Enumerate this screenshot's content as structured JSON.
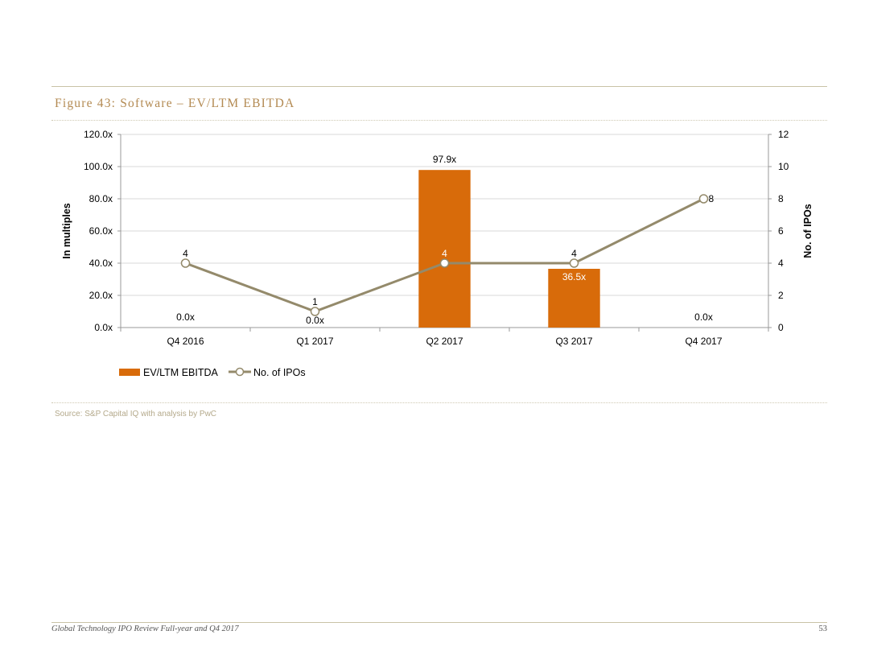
{
  "figure_title": "Figure 43: Software – EV/LTM EBITDA",
  "source": "Source: S&P Capital IQ with analysis by PwC",
  "footer": {
    "left": "Global Technology IPO Review Full-year and Q4 2017",
    "page": "53"
  },
  "colors": {
    "bar": "#d86b0a",
    "line": "#948a6b",
    "grid": "#d9d9d9",
    "axis": "#999999",
    "title": "#b38a52"
  },
  "chart_data": {
    "type": "bar",
    "title": "",
    "categories": [
      "Q4 2016",
      "Q1 2017",
      "Q2 2017",
      "Q3 2017",
      "Q4 2017"
    ],
    "series": [
      {
        "name": "EV/LTM EBITDA",
        "type": "bar",
        "axis": "left",
        "values": [
          0.0,
          0.0,
          97.9,
          36.5,
          0.0
        ],
        "data_labels": [
          "0.0x",
          "0.0x",
          "97.9x",
          "36.5x",
          "0.0x"
        ]
      },
      {
        "name": "No. of IPOs",
        "type": "line",
        "axis": "right",
        "values": [
          4,
          1,
          4,
          4,
          8
        ],
        "data_labels": [
          "4",
          "1",
          "4",
          "4",
          "8"
        ]
      }
    ],
    "ylabel": "In multiples",
    "y2label": "No. of IPOs",
    "ylim": [
      0,
      120
    ],
    "y2lim": [
      0,
      12
    ],
    "y_ticks": [
      "0.0x",
      "20.0x",
      "40.0x",
      "60.0x",
      "80.0x",
      "100.0x",
      "120.0x"
    ],
    "y2_ticks": [
      "0",
      "2",
      "4",
      "6",
      "8",
      "10",
      "12"
    ],
    "grid": true,
    "legend": "bottom-left"
  }
}
